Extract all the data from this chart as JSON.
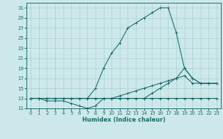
{
  "title": "",
  "xlabel": "Humidex (Indice chaleur)",
  "ylabel": "",
  "xlim": [
    -0.5,
    23.5
  ],
  "ylim": [
    11,
    32
  ],
  "xticks": [
    0,
    1,
    2,
    3,
    4,
    5,
    6,
    7,
    8,
    9,
    10,
    11,
    12,
    13,
    14,
    15,
    16,
    17,
    18,
    19,
    20,
    21,
    22,
    23
  ],
  "yticks": [
    11,
    13,
    15,
    17,
    19,
    21,
    23,
    25,
    27,
    29,
    31
  ],
  "bg_color": "#cce8ea",
  "grid_color": "#aacfcf",
  "line_color": "#1a6b6b",
  "series": [
    {
      "x": [
        0,
        1,
        2,
        3,
        4,
        5,
        6,
        7,
        8,
        9,
        10,
        11,
        12,
        13,
        14,
        15,
        16,
        17,
        18,
        19,
        20,
        21,
        22,
        23
      ],
      "y": [
        13,
        13,
        12.5,
        12.5,
        12.5,
        12,
        11.5,
        11,
        11.5,
        13,
        13,
        13,
        13,
        13,
        13,
        13,
        13,
        13,
        13,
        13,
        13,
        13,
        13,
        13
      ]
    },
    {
      "x": [
        0,
        1,
        2,
        3,
        4,
        5,
        6,
        7,
        8,
        9,
        10,
        11,
        12,
        13,
        14,
        15,
        16,
        17,
        18,
        19,
        20,
        21,
        22,
        23
      ],
      "y": [
        13,
        13,
        13,
        13,
        13,
        13,
        13,
        13,
        13,
        13,
        13,
        13.5,
        14,
        14.5,
        15,
        15.5,
        16,
        16.5,
        17,
        17.5,
        16,
        16,
        16,
        16
      ]
    },
    {
      "x": [
        0,
        1,
        2,
        3,
        4,
        5,
        6,
        7,
        8,
        9,
        10,
        11,
        12,
        13,
        14,
        15,
        16,
        17,
        18,
        19,
        20,
        21,
        22,
        23
      ],
      "y": [
        13,
        13,
        13,
        13,
        13,
        13,
        13,
        13,
        15,
        19,
        22,
        24,
        27,
        28,
        29,
        30,
        31,
        31,
        26,
        19,
        17,
        16,
        16,
        16
      ]
    },
    {
      "x": [
        0,
        1,
        2,
        3,
        4,
        5,
        6,
        7,
        8,
        9,
        10,
        11,
        12,
        13,
        14,
        15,
        16,
        17,
        18,
        19,
        20,
        21,
        22,
        23
      ],
      "y": [
        13,
        13,
        13,
        13,
        13,
        13,
        13,
        13,
        13,
        13,
        13,
        13,
        13,
        13,
        13,
        14,
        15,
        16,
        17,
        19,
        17,
        16,
        16,
        16
      ]
    }
  ]
}
